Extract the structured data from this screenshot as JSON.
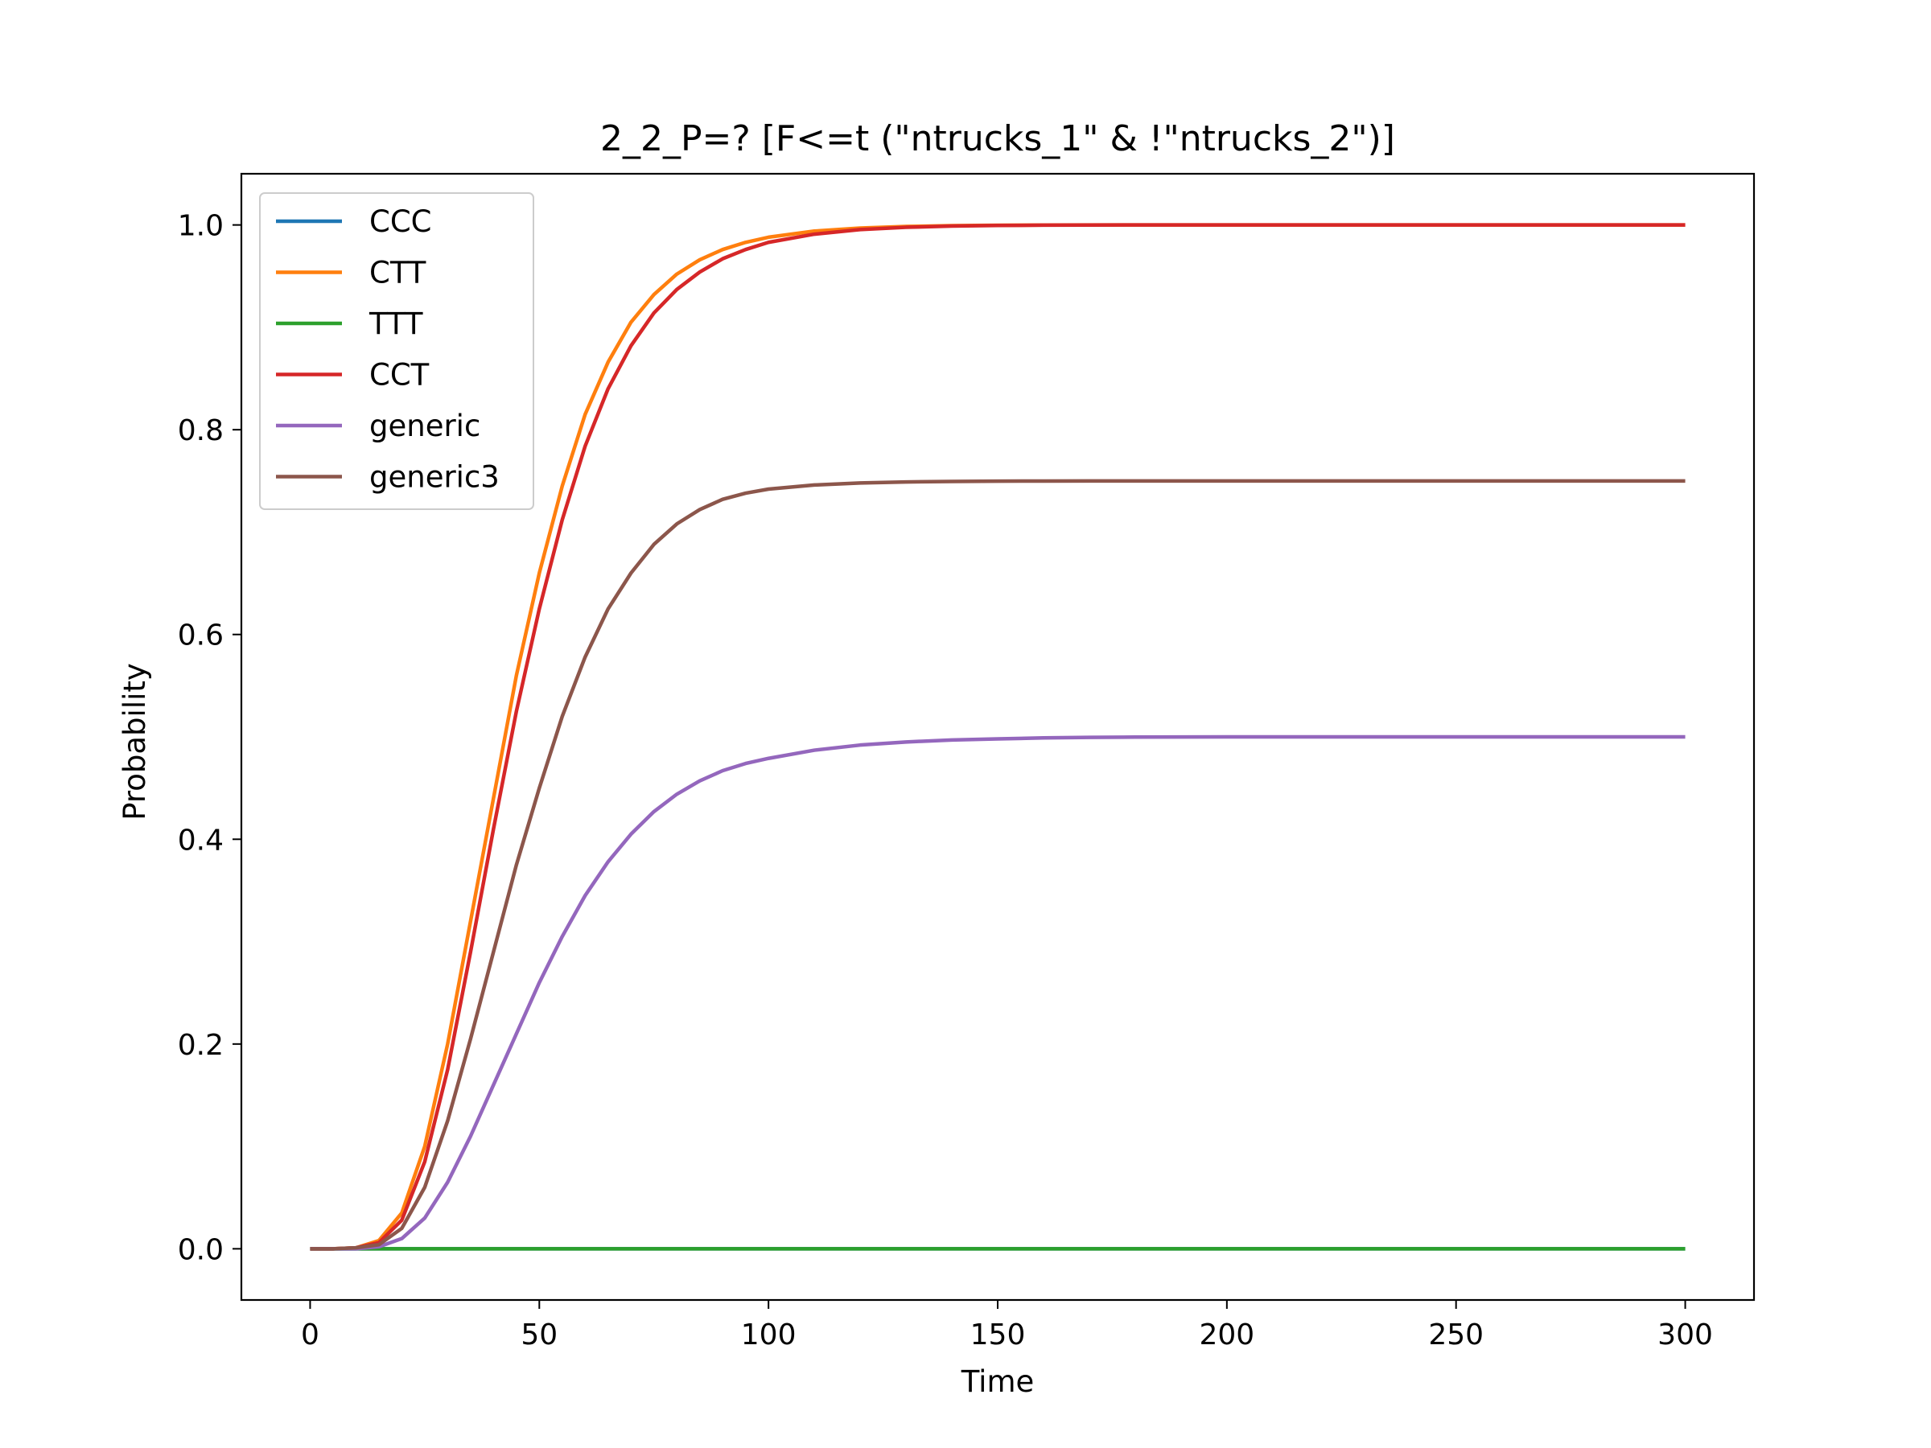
{
  "chart_data": {
    "type": "line",
    "title": "2_2_P=? [F<=t (\"ntrucks_1\" & !\"ntrucks_2\")]",
    "xlabel": "Time",
    "ylabel": "Probability",
    "xlim": [
      -15,
      315
    ],
    "ylim": [
      -0.05,
      1.05
    ],
    "x_ticks": [
      0,
      50,
      100,
      150,
      200,
      250,
      300
    ],
    "y_ticks": [
      0.0,
      0.2,
      0.4,
      0.6,
      0.8,
      1.0
    ],
    "x_tick_labels": [
      "0",
      "50",
      "100",
      "150",
      "200",
      "250",
      "300"
    ],
    "y_tick_labels": [
      "0.0",
      "0.2",
      "0.4",
      "0.6",
      "0.8",
      "1.0"
    ],
    "grid": false,
    "legend_position": "top-left",
    "x": [
      0,
      5,
      10,
      15,
      20,
      25,
      30,
      35,
      40,
      45,
      50,
      55,
      60,
      65,
      70,
      75,
      80,
      85,
      90,
      95,
      100,
      110,
      120,
      130,
      140,
      150,
      160,
      170,
      180,
      190,
      200,
      220,
      240,
      260,
      280,
      300
    ],
    "series": [
      {
        "name": "CCC",
        "color": "#1f77b4",
        "values": [
          0,
          0,
          0,
          0,
          0,
          0,
          0,
          0,
          0,
          0,
          0,
          0,
          0,
          0,
          0,
          0,
          0,
          0,
          0,
          0,
          0,
          0,
          0,
          0,
          0,
          0,
          0,
          0,
          0,
          0,
          0,
          0,
          0,
          0,
          0,
          0
        ]
      },
      {
        "name": "CTT",
        "color": "#ff7f0e",
        "values": [
          0,
          0,
          0.001,
          0.008,
          0.035,
          0.1,
          0.2,
          0.32,
          0.44,
          0.56,
          0.66,
          0.745,
          0.815,
          0.866,
          0.905,
          0.932,
          0.952,
          0.966,
          0.976,
          0.983,
          0.988,
          0.994,
          0.997,
          0.9985,
          0.9993,
          0.9997,
          0.9999,
          1.0,
          1.0,
          1.0,
          1.0,
          1.0,
          1.0,
          1.0,
          1.0,
          1.0
        ]
      },
      {
        "name": "TTT",
        "color": "#2ca02c",
        "values": [
          0,
          0,
          0,
          0,
          0,
          0,
          0,
          0,
          0,
          0,
          0,
          0,
          0,
          0,
          0,
          0,
          0,
          0,
          0,
          0,
          0,
          0,
          0,
          0,
          0,
          0,
          0,
          0,
          0,
          0,
          0,
          0,
          0,
          0,
          0,
          0
        ]
      },
      {
        "name": "CCT",
        "color": "#d62728",
        "values": [
          0,
          0,
          0.001,
          0.006,
          0.028,
          0.085,
          0.175,
          0.29,
          0.41,
          0.525,
          0.625,
          0.712,
          0.784,
          0.84,
          0.882,
          0.914,
          0.937,
          0.954,
          0.967,
          0.976,
          0.983,
          0.991,
          0.9955,
          0.9977,
          0.9989,
          0.9995,
          0.9998,
          0.9999,
          1.0,
          1.0,
          1.0,
          1.0,
          1.0,
          1.0,
          1.0,
          1.0
        ]
      },
      {
        "name": "generic",
        "color": "#9467bd",
        "values": [
          0,
          0,
          0,
          0.002,
          0.01,
          0.03,
          0.065,
          0.11,
          0.16,
          0.21,
          0.26,
          0.305,
          0.345,
          0.378,
          0.405,
          0.427,
          0.444,
          0.457,
          0.467,
          0.474,
          0.479,
          0.487,
          0.492,
          0.495,
          0.497,
          0.498,
          0.499,
          0.4995,
          0.4998,
          0.4999,
          0.5,
          0.5,
          0.5,
          0.5,
          0.5,
          0.5
        ]
      },
      {
        "name": "generic3",
        "color": "#8c564b",
        "values": [
          0,
          0,
          0.001,
          0.004,
          0.02,
          0.06,
          0.125,
          0.205,
          0.29,
          0.375,
          0.45,
          0.52,
          0.578,
          0.625,
          0.66,
          0.688,
          0.708,
          0.722,
          0.732,
          0.738,
          0.742,
          0.746,
          0.748,
          0.749,
          0.7495,
          0.7498,
          0.7499,
          0.75,
          0.75,
          0.75,
          0.75,
          0.75,
          0.75,
          0.75,
          0.75,
          0.75
        ]
      }
    ]
  }
}
